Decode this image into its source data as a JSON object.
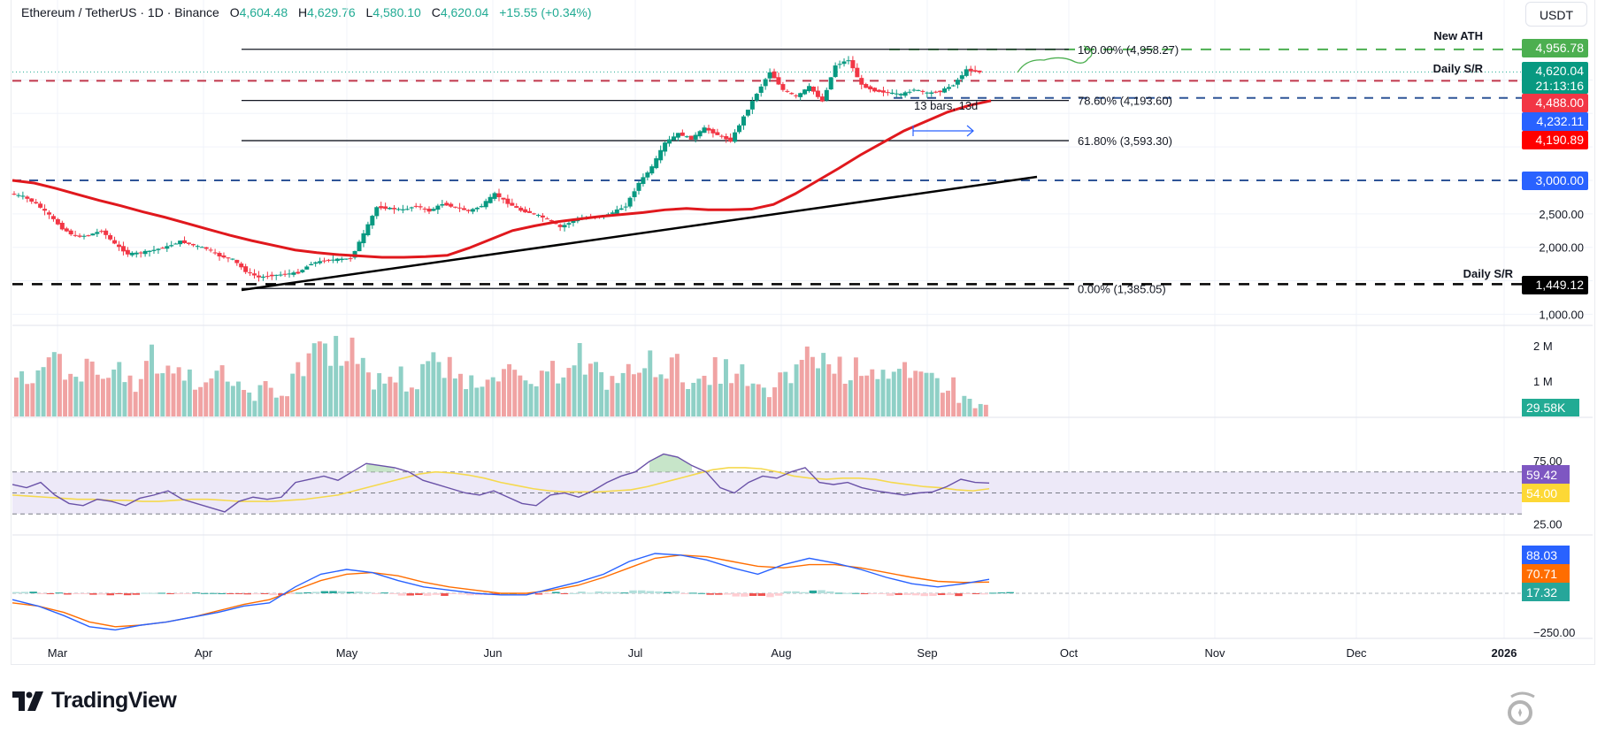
{
  "header": {
    "symbol": "Ethereum / TetherUS · 1D · Binance",
    "open_label": "O",
    "open": "4,604.48",
    "high_label": "H",
    "high": "4,629.76",
    "low_label": "L",
    "low": "4,580.10",
    "close_label": "C",
    "close": "4,620.04",
    "change": "+15.55 (+0.34%)"
  },
  "currency_button": "USDT",
  "annotations": {
    "new_ath": "New ATH",
    "daily_sr_top": "Daily S/R",
    "daily_sr_bottom": "Daily S/R",
    "bars_range": "13 bars, 13d"
  },
  "fib_levels": [
    {
      "label": "100.00% (4,958.27)",
      "price": 4958.27
    },
    {
      "label": "78.60% (4,193.60)",
      "price": 4193.6
    },
    {
      "label": "61.80% (3,593.30)",
      "price": 3593.3
    },
    {
      "label": "0.00% (1,385.05)",
      "price": 1385.05
    }
  ],
  "price_tags": [
    {
      "text": "4,956.78",
      "price": 4956.78,
      "color": "#4caf50"
    },
    {
      "text": "4,620.04",
      "sub": "21:13:16",
      "price": 4620.04,
      "color": "#089981"
    },
    {
      "text": "4,488.00",
      "price": 4488.0,
      "color": "#f23645"
    },
    {
      "text": "4,232.11",
      "price": 4232.11,
      "color": "#2962ff"
    },
    {
      "text": "4,190.89",
      "price": 4190.89,
      "color": "#ff0000"
    },
    {
      "text": "3,000.00",
      "price": 3000.0,
      "color": "#2962ff"
    },
    {
      "text": "1,449.12",
      "price": 1449.12,
      "color": "#000000"
    }
  ],
  "indicator_tags": {
    "volume": {
      "text": "29.58K",
      "color": "#22ab94"
    },
    "rsi": {
      "text": "59.42",
      "color": "#7e57c2"
    },
    "rsi_ma": {
      "text": "54.00",
      "color": "#fdd835"
    },
    "macd": {
      "text": "88.03",
      "color": "#2962ff"
    },
    "signal": {
      "text": "70.71",
      "color": "#ff6d00"
    },
    "hist": {
      "text": "17.32",
      "color": "#26a69a"
    }
  },
  "chart_data": {
    "type": "candlestick",
    "title": "Ethereum / TetherUS · 1D · Binance",
    "price_axis": {
      "ticks": [
        "2,500.00",
        "2,000.00",
        "1,000.00"
      ],
      "tick_values": [
        2500,
        2000,
        1000
      ],
      "range": [
        700,
        5200
      ]
    },
    "volume_axis": {
      "ticks": [
        "2 M",
        "1 M"
      ],
      "tick_values": [
        2000000,
        1000000
      ]
    },
    "rsi_axis": {
      "ticks": [
        "75.00",
        "25.00"
      ],
      "tick_values": [
        75,
        25
      ],
      "bands": [
        70,
        50,
        30
      ]
    },
    "macd_axis": {
      "ticks": [
        "−250.00"
      ],
      "tick_values": [
        -250
      ]
    },
    "x_axis": {
      "ticks": [
        "Mar",
        "Apr",
        "May",
        "Jun",
        "Jul",
        "Aug",
        "Sep",
        "Oct",
        "Nov",
        "Dec",
        "2026"
      ]
    },
    "horizontal_levels": {
      "new_ath": 4956.78,
      "daily_sr_top": 4488.0,
      "blue_level": 4232.11,
      "blue_level_2": 3000.0,
      "daily_sr_bottom": 1449.12,
      "last_price": 4620.04
    },
    "close_path": [
      2800,
      2760,
      2650,
      2480,
      2280,
      2160,
      2180,
      2250,
      2050,
      1900,
      1920,
      1960,
      2010,
      2090,
      2030,
      1980,
      1870,
      1820,
      1640,
      1550,
      1580,
      1600,
      1620,
      1760,
      1800,
      1820,
      1830,
      2200,
      2600,
      2580,
      2560,
      2620,
      2540,
      2650,
      2600,
      2540,
      2620,
      2800,
      2660,
      2550,
      2500,
      2420,
      2300,
      2400,
      2440,
      2460,
      2520,
      2620,
      2960,
      3200,
      3560,
      3700,
      3620,
      3780,
      3680,
      3590,
      3950,
      4300,
      4620,
      4350,
      4250,
      4400,
      4180,
      4720,
      4800,
      4420,
      4340,
      4310,
      4280,
      4360,
      4300,
      4330,
      4430,
      4650,
      4620
    ],
    "sma_path": [
      3000,
      2960,
      2880,
      2790,
      2700,
      2620,
      2530,
      2450,
      2360,
      2270,
      2180,
      2100,
      2030,
      1960,
      1920,
      1890,
      1870,
      1850,
      1850,
      1860,
      1880,
      1990,
      2120,
      2250,
      2320,
      2380,
      2420,
      2460,
      2490,
      2520,
      2560,
      2580,
      2560,
      2560,
      2570,
      2640,
      2800,
      2990,
      3180,
      3380,
      3560,
      3740,
      3880,
      4020,
      4120,
      4190
    ],
    "volume_path": [
      1.05,
      1.2,
      1.5,
      1.0,
      1.3,
      1.1,
      1.35,
      0.9,
      1.6,
      1.4,
      1.2,
      0.9,
      1.5,
      1.0,
      0.6,
      0.8,
      0.7,
      1.2,
      2.1,
      1.9,
      2.0,
      1.3,
      1.0,
      1.15,
      0.9,
      1.5,
      1.3,
      1.1,
      1.0,
      1.4,
      1.2,
      0.9,
      1.0,
      1.3,
      1.8,
      1.3,
      1.0,
      1.2,
      1.3,
      1.5,
      1.4,
      1.1,
      0.9,
      1.3,
      1.2,
      0.8,
      0.7,
      1.0,
      1.6,
      1.7,
      1.4,
      1.3,
      1.5,
      1.3,
      1.2,
      1.0,
      1.1,
      0.9,
      0.5,
      0.3
    ],
    "rsi_path": [
      58,
      55,
      60,
      48,
      40,
      38,
      44,
      42,
      38,
      45,
      48,
      52,
      44,
      40,
      36,
      32,
      42,
      46,
      44,
      46,
      60,
      63,
      66,
      62,
      70,
      78,
      76,
      74,
      70,
      62,
      58,
      54,
      50,
      48,
      52,
      46,
      40,
      38,
      48,
      50,
      46,
      52,
      60,
      66,
      70,
      80,
      87,
      84,
      76,
      70,
      55,
      50,
      60,
      66,
      64,
      70,
      74,
      60,
      58,
      60,
      55,
      52,
      50,
      48,
      50,
      51,
      56,
      63,
      60,
      59.42
    ],
    "rsi_ma_path": [
      48,
      47,
      46,
      45,
      44,
      44,
      43,
      43,
      42,
      42,
      43,
      44,
      44,
      43,
      42,
      42,
      42,
      43,
      44,
      46,
      48,
      52,
      56,
      60,
      64,
      68,
      70,
      69,
      67,
      64,
      60,
      57,
      54,
      52,
      51,
      51,
      51,
      52,
      53,
      56,
      60,
      64,
      68,
      72,
      74,
      74,
      73,
      70,
      66,
      64,
      63,
      64,
      64,
      63,
      60,
      58,
      56,
      55,
      53,
      52,
      54
    ],
    "macd_path": [
      -40,
      -80,
      -140,
      -210,
      -230,
      -200,
      -180,
      -150,
      -120,
      -80,
      -60,
      40,
      120,
      150,
      130,
      80,
      40,
      20,
      0,
      -10,
      -10,
      30,
      70,
      120,
      200,
      250,
      240,
      210,
      160,
      120,
      180,
      220,
      190,
      150,
      100,
      60,
      40,
      60,
      88.03
    ],
    "signal_path": [
      -60,
      -80,
      -120,
      -180,
      -210,
      -200,
      -180,
      -150,
      -110,
      -70,
      -40,
      20,
      80,
      120,
      130,
      110,
      70,
      40,
      20,
      0,
      0,
      20,
      50,
      100,
      160,
      220,
      240,
      230,
      200,
      170,
      160,
      180,
      180,
      160,
      130,
      100,
      75,
      68,
      70.71
    ]
  }
}
